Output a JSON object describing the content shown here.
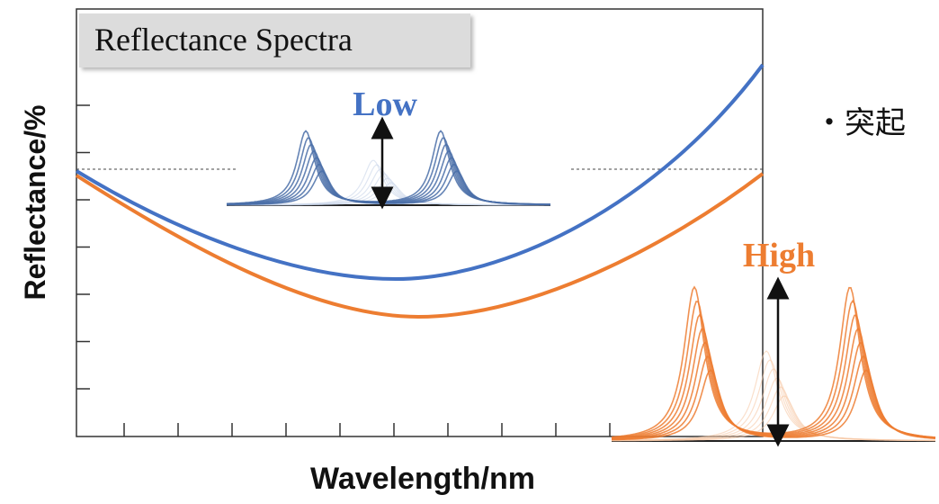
{
  "title": "Reflectance Spectra",
  "y_axis_label": "Reflectance/%",
  "x_axis_label": "Wavelength/nm",
  "insets": [
    {
      "label": "Low"
    },
    {
      "label": "High"
    }
  ],
  "side_text": "・突起"
}
